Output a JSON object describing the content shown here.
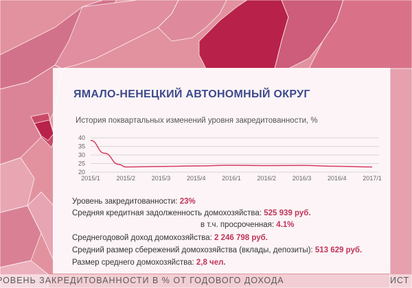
{
  "region_title": "ЯМАЛО-НЕНЕЦКИЙ АВТОНОМНЫЙ ОКРУГ",
  "chart_title": "История поквартальных изменений уровня закредитованности, %",
  "chart_data": {
    "type": "line",
    "title": "История поквартальных изменений уровня закредитованности, %",
    "xlabel": "",
    "ylabel": "",
    "x_ticks": [
      "2015/1",
      "2015/2",
      "2015/3",
      "2015/4",
      "2016/1",
      "2016/2",
      "2016/3",
      "2016/4",
      "2017/1"
    ],
    "x": [
      2015.0,
      2015.1,
      2015.2,
      2015.25,
      2015.5,
      2015.75,
      2016.0,
      2016.25,
      2016.5,
      2016.75,
      2017.0
    ],
    "y": [
      38.5,
      31,
      24.5,
      23,
      23.3,
      23.6,
      24.0,
      23.8,
      23.9,
      23.4,
      23.0
    ],
    "y_ticks": [
      20,
      25,
      30,
      35,
      40
    ],
    "ylim": [
      20,
      40
    ],
    "grid": true,
    "line_color": "#d63c62",
    "grid_color": "#cccccc"
  },
  "stats": [
    {
      "label": "Уровень закредитованности: ",
      "value": "23%"
    },
    {
      "label": "Средняя кредитная задолженность домохозяйства: ",
      "value": "525 939 руб."
    },
    {
      "label": "в т.ч. просроченная: ",
      "value": "4.1%"
    },
    {
      "label": "Среднегодовой доход домохозяйства: ",
      "value": "2 246 798 руб."
    },
    {
      "label": "Средний размер сбережений домохозяйства (вклады, депозиты): ",
      "value": "513 629 руб."
    },
    {
      "label": "Размер среднего домохозяйства: ",
      "value": "2,8 чел."
    }
  ],
  "caption": {
    "left": "РОВЕНЬ ЗАКРЕДИТОВАННОСТИ В % ОТ ГОДОВОГО ДОХОДА",
    "right": "ИСТ"
  },
  "colors": {
    "map_light": "#e8a3b0",
    "map_medium": "#d86a84",
    "map_dark": "#c0355a",
    "map_highlight": "#b8224a",
    "title": "#3d4a8c",
    "value": "#c0355a"
  }
}
